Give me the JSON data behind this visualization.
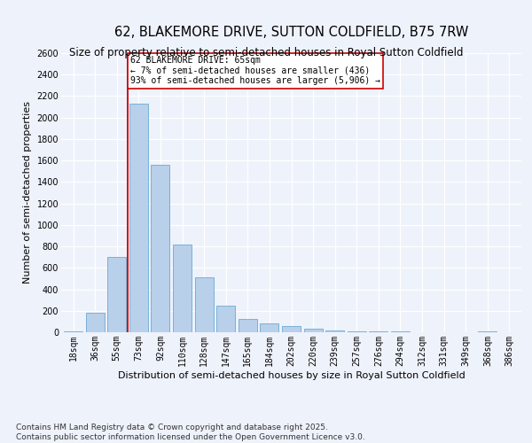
{
  "title": "62, BLAKEMORE DRIVE, SUTTON COLDFIELD, B75 7RW",
  "subtitle": "Size of property relative to semi-detached houses in Royal Sutton Coldfield",
  "xlabel": "Distribution of semi-detached houses by size in Royal Sutton Coldfield",
  "ylabel": "Number of semi-detached properties",
  "footnote": "Contains HM Land Registry data © Crown copyright and database right 2025.\nContains public sector information licensed under the Open Government Licence v3.0.",
  "bar_labels": [
    "18sqm",
    "36sqm",
    "55sqm",
    "73sqm",
    "92sqm",
    "110sqm",
    "128sqm",
    "147sqm",
    "165sqm",
    "184sqm",
    "202sqm",
    "220sqm",
    "239sqm",
    "257sqm",
    "276sqm",
    "294sqm",
    "312sqm",
    "331sqm",
    "349sqm",
    "368sqm",
    "386sqm"
  ],
  "bar_values": [
    10,
    180,
    700,
    2130,
    1560,
    820,
    510,
    250,
    125,
    80,
    60,
    35,
    20,
    5,
    5,
    5,
    2,
    2,
    2,
    10,
    2
  ],
  "bar_color": "#b8d0ea",
  "bar_edgecolor": "#6aaad4",
  "vline_x_index": 2.5,
  "vline_color": "#cc0000",
  "annotation_title": "62 BLAKEMORE DRIVE: 65sqm",
  "annotation_line1": "← 7% of semi-detached houses are smaller (436)",
  "annotation_line2": "93% of semi-detached houses are larger (5,906) →",
  "annotation_box_color": "#ffffff",
  "annotation_box_edgecolor": "#cc0000",
  "ylim": [
    0,
    2600
  ],
  "yticks": [
    0,
    200,
    400,
    600,
    800,
    1000,
    1200,
    1400,
    1600,
    1800,
    2000,
    2200,
    2400,
    2600
  ],
  "background_color": "#eef2fb",
  "plot_bg_color": "#eef2fb",
  "title_fontsize": 10.5,
  "subtitle_fontsize": 8.5,
  "axis_label_fontsize": 8,
  "tick_fontsize": 7,
  "footnote_fontsize": 6.5,
  "annotation_fontsize": 7
}
